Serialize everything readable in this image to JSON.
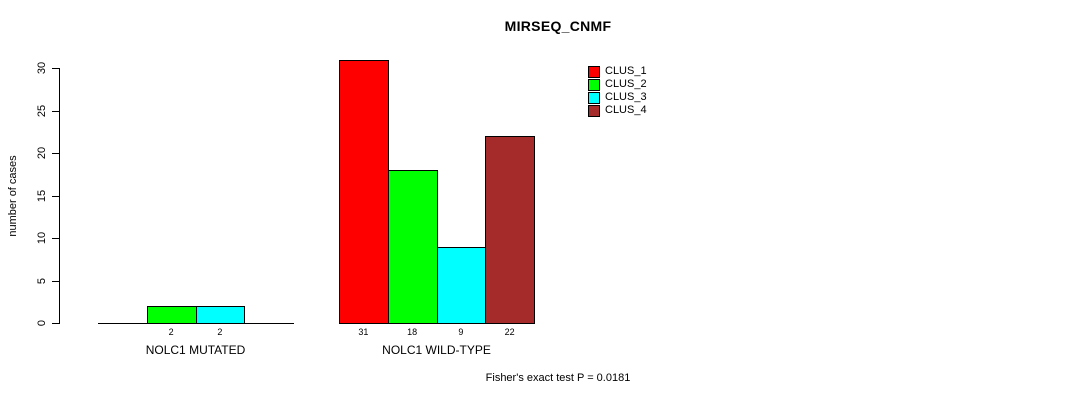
{
  "chart_data": {
    "type": "bar",
    "title": "MIRSEQ_CNMF",
    "ylabel": "number of cases",
    "xlabel": "",
    "ylim": [
      0,
      31
    ],
    "yticks": [
      0,
      5,
      10,
      15,
      20,
      25,
      30
    ],
    "grid": false,
    "legend_position": "top-right",
    "series": [
      {
        "name": "CLUS_1",
        "color": "#ff0000"
      },
      {
        "name": "CLUS_2",
        "color": "#00ff00"
      },
      {
        "name": "CLUS_3",
        "color": "#00ffff"
      },
      {
        "name": "CLUS_4",
        "color": "#a52a2a"
      }
    ],
    "groups": [
      {
        "label": "NOLC1 MUTATED",
        "values": [
          0,
          2,
          2,
          0
        ],
        "bar_labels": [
          "",
          "2",
          "2",
          ""
        ]
      },
      {
        "label": "NOLC1 WILD-TYPE",
        "values": [
          31,
          18,
          9,
          22
        ],
        "bar_labels": [
          "31",
          "18",
          "9",
          "22"
        ]
      }
    ],
    "annotation": "Fisher's exact test P = 0.0181"
  }
}
